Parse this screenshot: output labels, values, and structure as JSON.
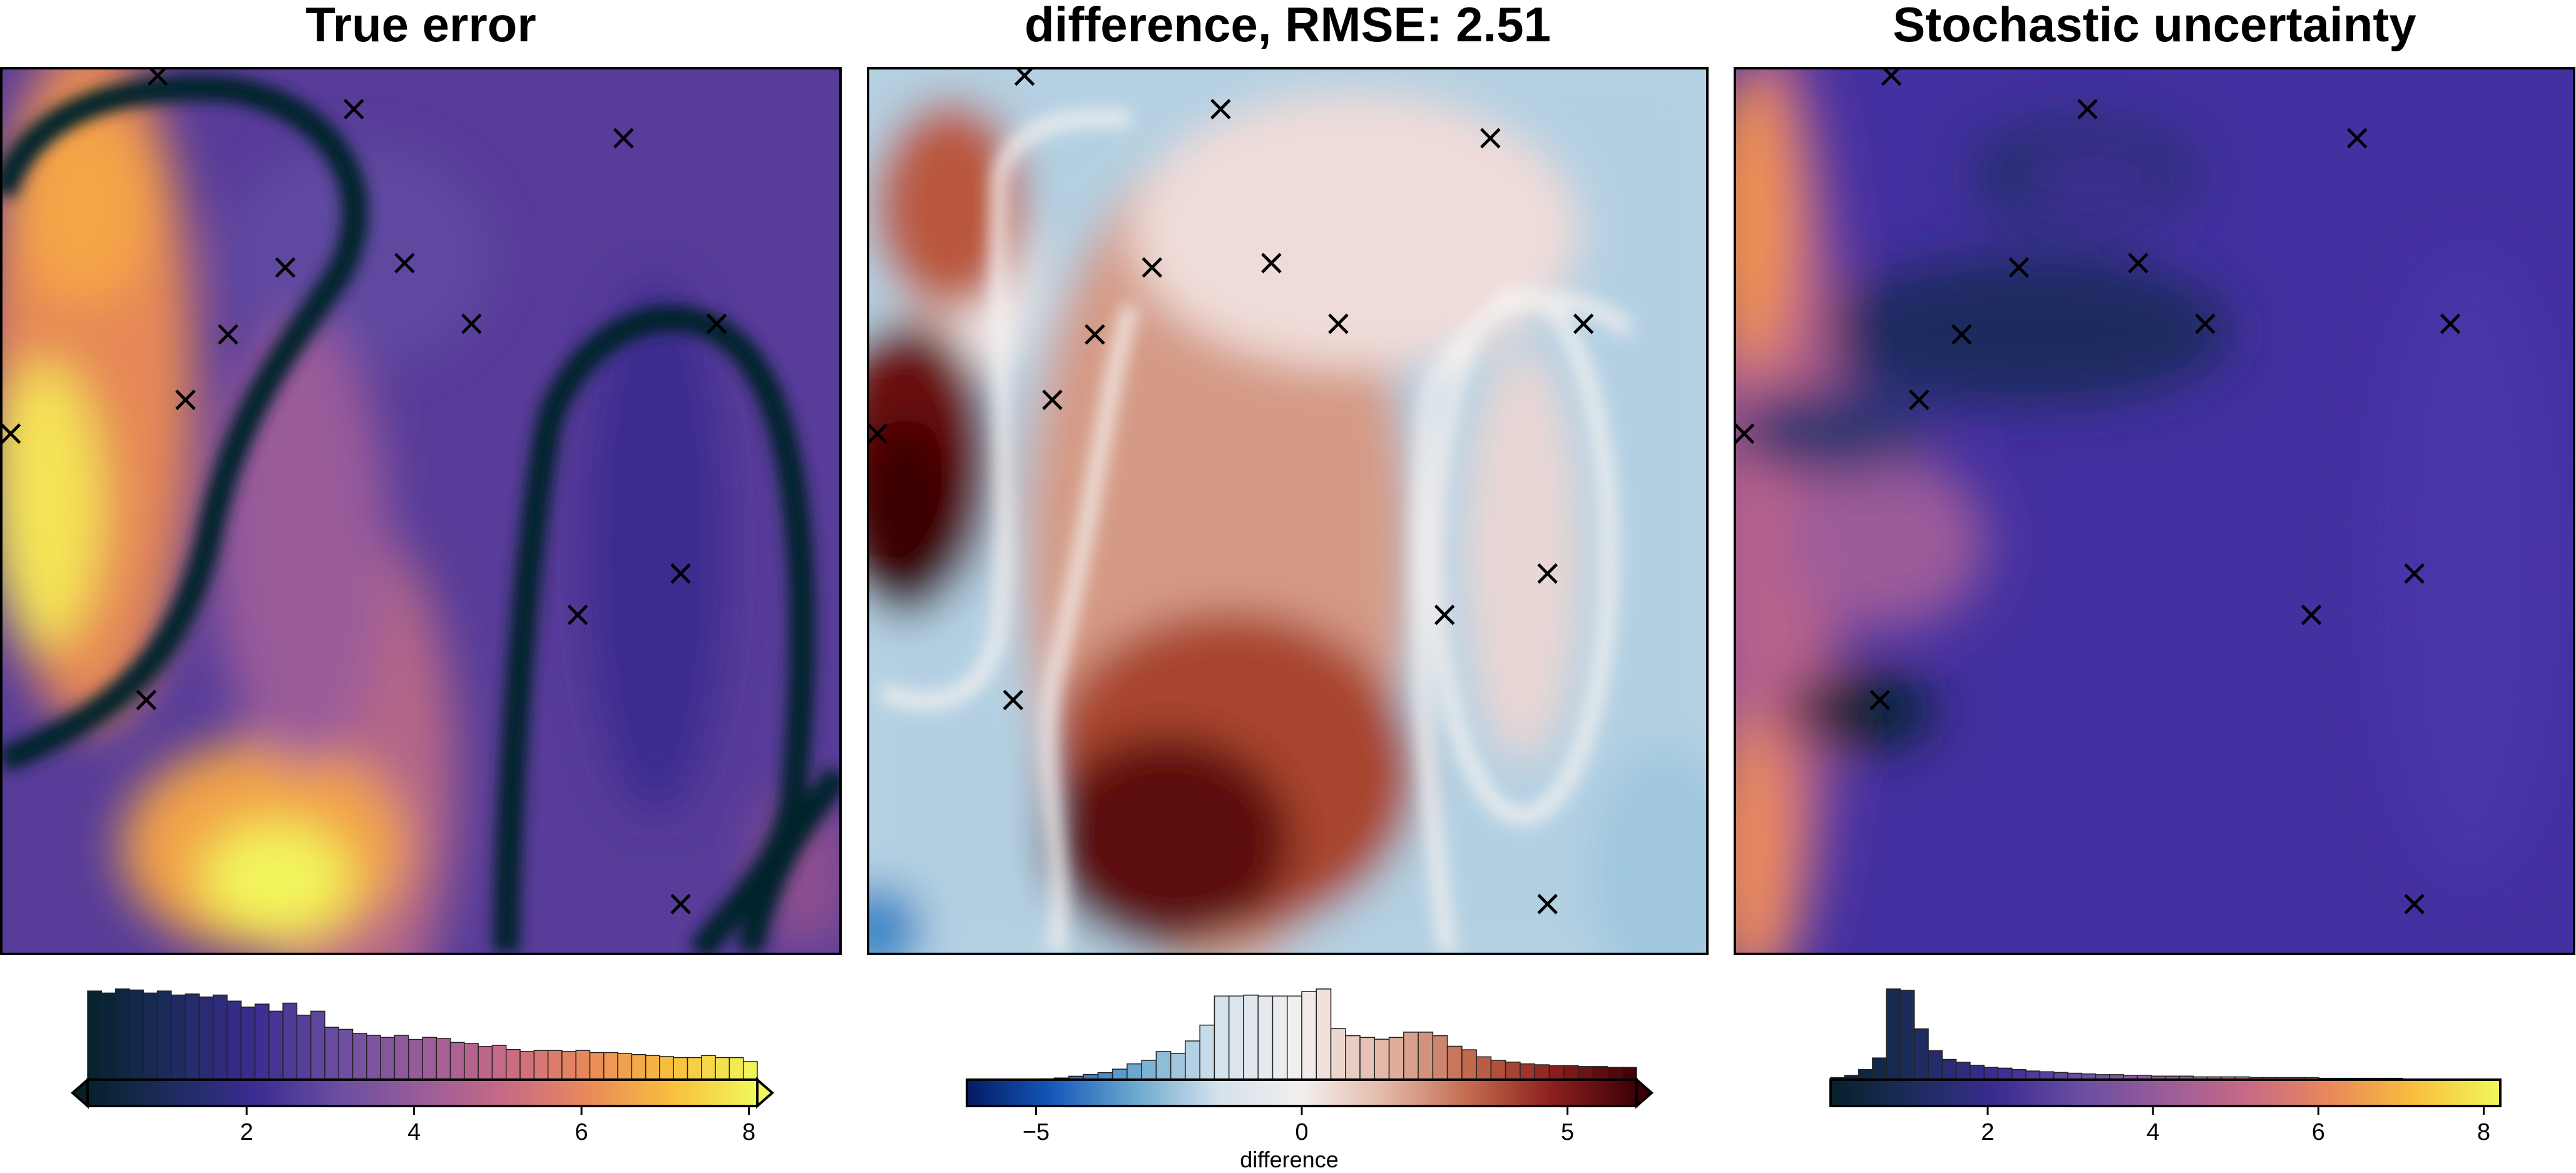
{
  "panels": [
    {
      "title": "True error"
    },
    {
      "title": "difference, RMSE: 2.51"
    },
    {
      "title": "Stochastic uncertainty"
    }
  ],
  "marker_symbol": "×",
  "colors": {
    "thermal": [
      "#06212b",
      "#1d2c5e",
      "#3b2c91",
      "#6a4ea2",
      "#9a5c9a",
      "#c86a85",
      "#ea8a5a",
      "#f9c03e",
      "#f0f85a"
    ],
    "diverging": [
      "#051a63",
      "#1457b8",
      "#6aa8cf",
      "#d4e2ec",
      "#f3efee",
      "#e3b7a6",
      "#c26a4e",
      "#8c1f1d",
      "#3b0006"
    ]
  },
  "chart_data": [
    {
      "type": "heatmap",
      "title": "True error",
      "colormap": "thermal",
      "colorbar": {
        "range": [
          0.1,
          8.1
        ],
        "ticks": [
          2,
          4,
          6,
          8
        ],
        "tick_labels": [
          "2",
          "4",
          "6",
          "8"
        ],
        "label": "",
        "extend": "both",
        "histogram_counts": [
          88,
          86,
          90,
          89,
          86,
          88,
          84,
          85,
          82,
          84,
          78,
          72,
          75,
          68,
          76,
          64,
          68,
          52,
          50,
          46,
          44,
          42,
          44,
          40,
          42,
          41,
          37,
          36,
          33,
          34,
          30,
          28,
          29,
          29,
          28,
          29,
          27,
          27,
          26,
          25,
          24,
          23,
          22,
          22,
          24,
          22,
          22,
          18
        ]
      }
    },
    {
      "type": "heatmap",
      "title": "difference, RMSE: 2.51",
      "colormap": "diverging",
      "colorbar": {
        "range": [
          -6.3,
          6.3
        ],
        "ticks": [
          -5,
          0,
          5
        ],
        "tick_labels": [
          "−5",
          "0",
          "5"
        ],
        "label": "difference",
        "extend": "max",
        "histogram_counts": [
          0,
          0,
          0,
          0,
          0,
          1,
          2,
          4,
          6,
          8,
          12,
          18,
          22,
          32,
          30,
          44,
          62,
          95,
          95,
          96,
          95,
          95,
          95,
          100,
          103,
          58,
          50,
          48,
          46,
          48,
          54,
          54,
          50,
          38,
          34,
          26,
          22,
          20,
          18,
          17,
          16,
          16,
          15,
          15,
          14,
          14
        ]
      }
    },
    {
      "type": "heatmap",
      "title": "Stochastic uncertainty",
      "colormap": "thermal",
      "colorbar": {
        "range": [
          0.1,
          8.2
        ],
        "ticks": [
          2,
          4,
          6,
          8
        ],
        "tick_labels": [
          "2",
          "4",
          "6",
          "8"
        ],
        "label": "",
        "extend": "none",
        "histogram_counts": [
          3,
          6,
          14,
          30,
          125,
          123,
          70,
          40,
          28,
          24,
          20,
          17,
          16,
          14,
          12,
          11,
          10,
          9,
          8,
          7,
          7,
          6,
          6,
          5,
          5,
          5,
          4,
          4,
          4,
          4,
          3,
          3,
          3,
          3,
          3,
          2,
          2,
          2,
          2,
          2,
          2,
          1,
          1,
          1,
          1,
          1,
          1,
          1
        ]
      }
    }
  ]
}
